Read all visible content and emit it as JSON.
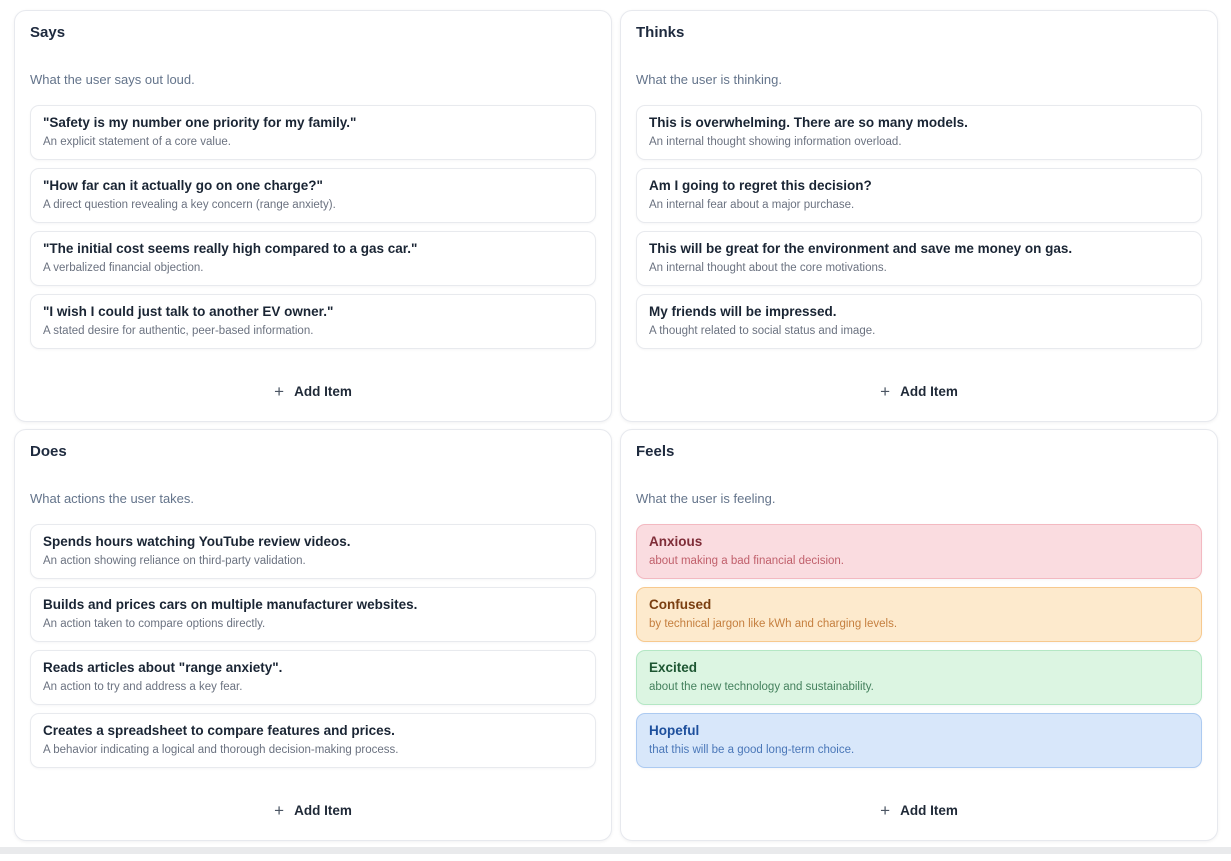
{
  "icons": {
    "plus": "+"
  },
  "colors": {
    "card_border": "#e7e9ee",
    "title_text": "#1e2a3e",
    "subtitle_text": "#64748b",
    "item_title_text": "#1a2534",
    "item_desc_text": "#6b7280"
  },
  "quadrants": [
    {
      "title": "Says",
      "subtitle": "What the user says out loud.",
      "add_label": "Add Item",
      "items": [
        {
          "title": "\"Safety is my number one priority for my family.\"",
          "description": "An explicit statement of a core value."
        },
        {
          "title": "\"How far can it actually go on one charge?\"",
          "description": "A direct question revealing a key concern (range anxiety)."
        },
        {
          "title": "\"The initial cost seems really high compared to a gas car.\"",
          "description": "A verbalized financial objection."
        },
        {
          "title": "\"I wish I could just talk to another EV owner.\"",
          "description": "A stated desire for authentic, peer-based information."
        }
      ]
    },
    {
      "title": "Thinks",
      "subtitle": "What the user is thinking.",
      "add_label": "Add Item",
      "items": [
        {
          "title": "This is overwhelming. There are so many models.",
          "description": "An internal thought showing information overload."
        },
        {
          "title": "Am I going to regret this decision?",
          "description": "An internal fear about a major purchase."
        },
        {
          "title": "This will be great for the environment and save me money on gas.",
          "description": "An internal thought about the core motivations."
        },
        {
          "title": "My friends will be impressed.",
          "description": "A thought related to social status and image."
        }
      ]
    },
    {
      "title": "Does",
      "subtitle": "What actions the user takes.",
      "add_label": "Add Item",
      "items": [
        {
          "title": "Spends hours watching YouTube review videos.",
          "description": "An action showing reliance on third-party validation."
        },
        {
          "title": "Builds and prices cars on multiple manufacturer websites.",
          "description": "An action taken to compare options directly."
        },
        {
          "title": "Reads articles about \"range anxiety\".",
          "description": "An action to try and address a key fear."
        },
        {
          "title": "Creates a spreadsheet to compare features and prices.",
          "description": "A behavior indicating a logical and thorough decision-making process."
        }
      ]
    },
    {
      "title": "Feels",
      "subtitle": "What the user is feeling.",
      "add_label": "Add Item",
      "items": [
        {
          "title": "Anxious",
          "description": "about making a bad financial decision.",
          "colors": {
            "bg": "#fadce0",
            "border": "#f3b9c1",
            "title": "#7f2d38",
            "desc": "#c05f6b"
          }
        },
        {
          "title": "Confused",
          "description": "by technical jargon like kWh and charging levels.",
          "colors": {
            "bg": "#fdeacd",
            "border": "#f7c98e",
            "title": "#7a3e10",
            "desc": "#c57f3f"
          }
        },
        {
          "title": "Excited",
          "description": "about the new technology and sustainability.",
          "colors": {
            "bg": "#dcf5e2",
            "border": "#b4e7c4",
            "title": "#1d5632",
            "desc": "#44815d"
          }
        },
        {
          "title": "Hopeful",
          "description": "that this will be a good long-term choice.",
          "colors": {
            "bg": "#d8e7fa",
            "border": "#accaf1",
            "title": "#1d4f9c",
            "desc": "#4a77b8"
          }
        }
      ]
    }
  ]
}
